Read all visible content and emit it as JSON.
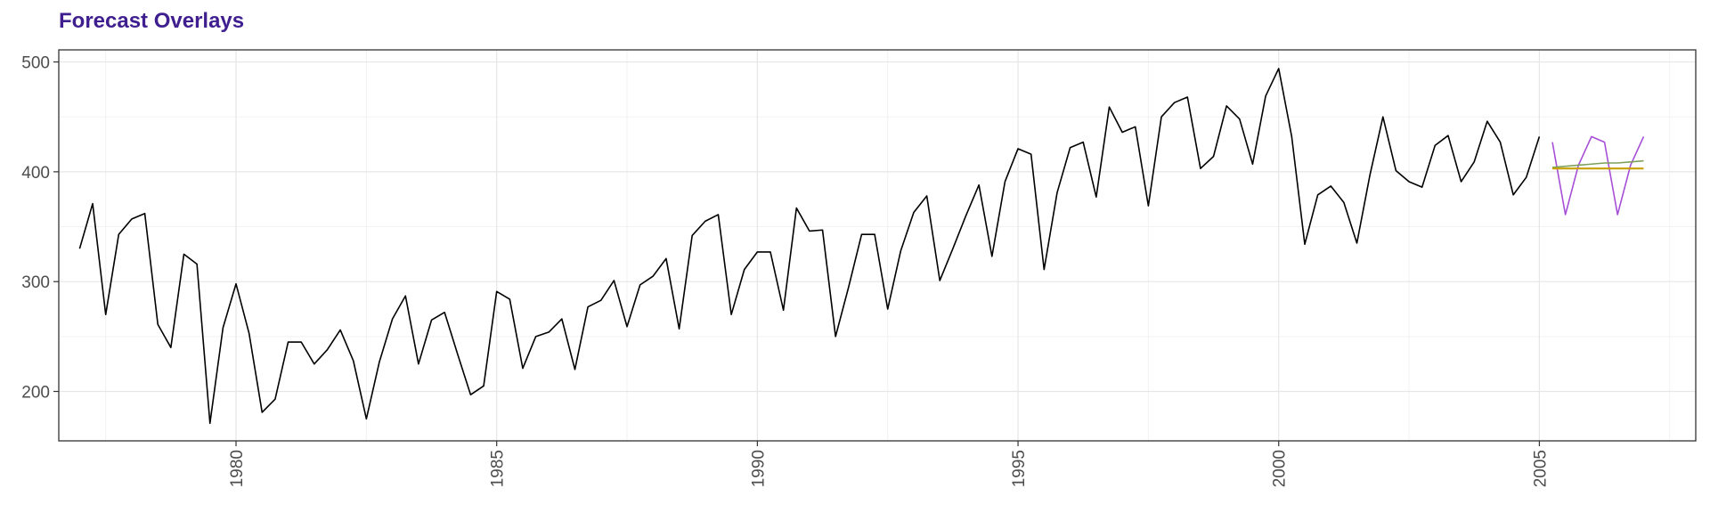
{
  "chart_data": {
    "type": "line",
    "title": "Forecast Overlays",
    "xlabel": "",
    "ylabel": "",
    "xlim": [
      1976.6,
      2008.0
    ],
    "ylim": [
      155,
      511
    ],
    "x_ticks": [
      1980,
      1985,
      1990,
      1995,
      2000,
      2005
    ],
    "y_ticks": [
      200,
      300,
      400,
      500
    ],
    "grid": true,
    "legend": "none",
    "colors": {
      "title": "#3f1f8f",
      "observed": "#000000",
      "seasonal_forecast": "#a64fd6",
      "mean_forecast": "#c8a000",
      "drift_forecast": "#7fa05a"
    },
    "series": [
      {
        "role": "observed",
        "start": 1977.0,
        "step": 0.25,
        "values": [
          330,
          371,
          270,
          343,
          357,
          362,
          261,
          240,
          325,
          316,
          171,
          258,
          298,
          253,
          181,
          193,
          245,
          245,
          225,
          238,
          256,
          228,
          175,
          227,
          266,
          287,
          225,
          265,
          272,
          234,
          197,
          205,
          291,
          284,
          221,
          250,
          254,
          266,
          220,
          277,
          283,
          301,
          259,
          297,
          305,
          321,
          257,
          342,
          355,
          361,
          270,
          311,
          327,
          327,
          274,
          367,
          346,
          347,
          250,
          295,
          343,
          343,
          275,
          328,
          363,
          378,
          301,
          330,
          360,
          388,
          323,
          391,
          421,
          416,
          311,
          381,
          422,
          427,
          377,
          459,
          436,
          441,
          369,
          450,
          463,
          468,
          403,
          414,
          460,
          448,
          407,
          469,
          494,
          432,
          334,
          379,
          387,
          372,
          335,
          397,
          450,
          401,
          391,
          386,
          424,
          433,
          391,
          409,
          446,
          427,
          379,
          395,
          432
        ]
      },
      {
        "role": "seasonal_forecast",
        "start": 2005.25,
        "step": 0.25,
        "values": [
          427,
          361,
          406,
          432,
          427,
          361,
          406,
          432
        ]
      },
      {
        "role": "mean_forecast",
        "start": 2005.25,
        "step": 0.25,
        "values": [
          403,
          403,
          403,
          403,
          403,
          403,
          403,
          403
        ]
      },
      {
        "role": "drift_forecast",
        "start": 2005.25,
        "step": 0.25,
        "values": [
          404,
          405,
          406,
          407,
          408,
          408,
          409,
          410
        ]
      }
    ]
  }
}
